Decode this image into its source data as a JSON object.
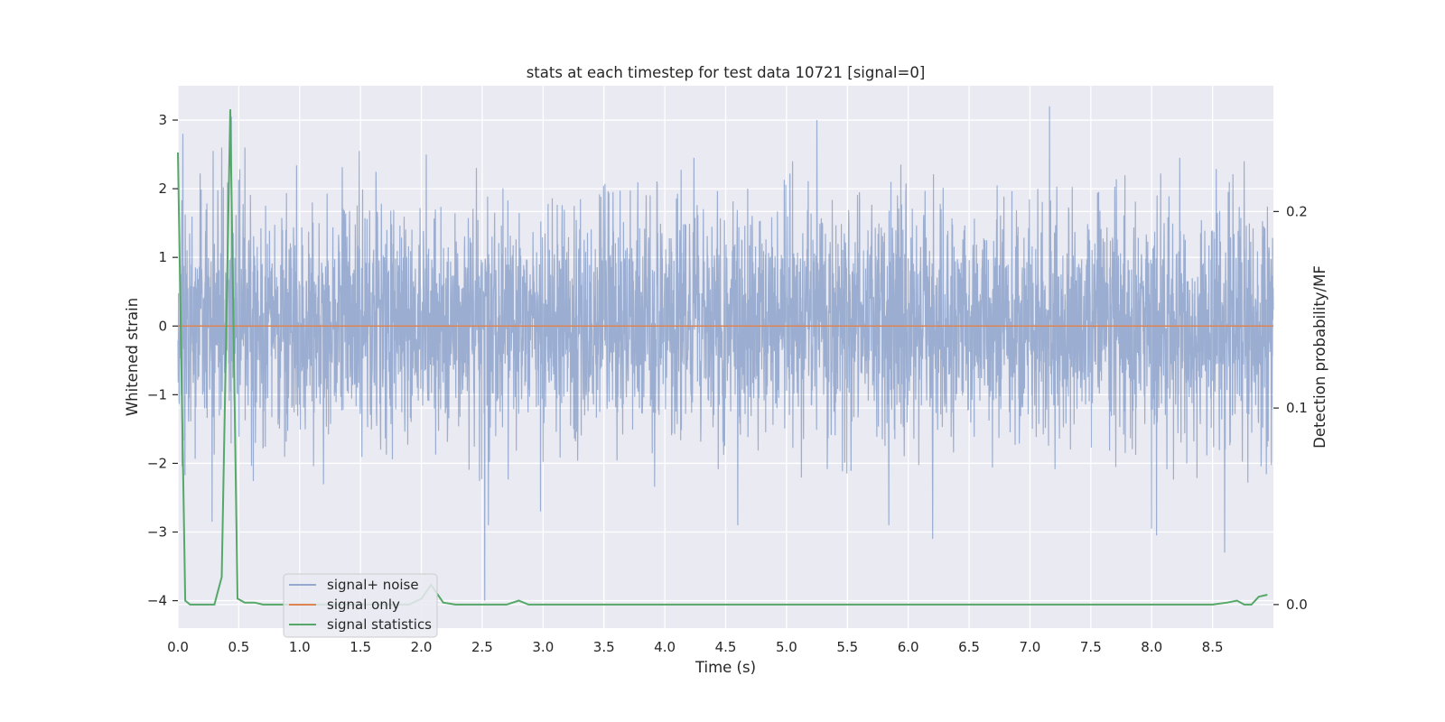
{
  "chart_data": {
    "type": "line",
    "title": "stats at each timestep for test data 10721 [signal=0]",
    "xlabel": "Time (s)",
    "ylabel": "Whitened strain",
    "y2label": "Detection probability/MF",
    "xlim": [
      0,
      9.0
    ],
    "ylim": [
      -4.4,
      3.5
    ],
    "y2lim": [
      -0.012,
      0.264
    ],
    "xticks": [
      0.0,
      0.5,
      1.0,
      1.5,
      2.0,
      2.5,
      3.0,
      3.5,
      4.0,
      4.5,
      5.0,
      5.5,
      6.0,
      6.5,
      7.0,
      7.5,
      8.0,
      8.5
    ],
    "xtick_labels": [
      "0.0",
      "0.5",
      "1.0",
      "1.5",
      "2.0",
      "2.5",
      "3.0",
      "3.5",
      "4.0",
      "4.5",
      "5.0",
      "5.5",
      "6.0",
      "6.5",
      "7.0",
      "7.5",
      "8.0",
      "8.5"
    ],
    "yticks": [
      -4,
      -3,
      -2,
      -1,
      0,
      1,
      2,
      3
    ],
    "ytick_labels": [
      "−4",
      "−3",
      "−2",
      "−1",
      "0",
      "1",
      "2",
      "3"
    ],
    "y2ticks": [
      0.0,
      0.1,
      0.2
    ],
    "y2tick_labels": [
      "0.0",
      "0.1",
      "0.2"
    ],
    "grid": true,
    "legend_position": "lower-left",
    "colors": {
      "background": "#eaeaf2",
      "grid": "#ffffff",
      "noise": "#4c72b0",
      "signal": "#dd8452",
      "stats": "#55a868"
    },
    "series": [
      {
        "name": "signal+ noise",
        "axis": "left",
        "style": "dense-noise",
        "duration": 9.0,
        "typical_amplitude": [
          -1.3,
          1.4
        ],
        "peaks": [
          {
            "x": 0.04,
            "y": 2.8
          },
          {
            "x": 0.29,
            "y": 2.55
          },
          {
            "x": 0.36,
            "y": 2.6
          },
          {
            "x": 0.44,
            "y": 3.05
          },
          {
            "x": 0.55,
            "y": 2.6
          },
          {
            "x": 1.49,
            "y": 2.55
          },
          {
            "x": 2.04,
            "y": 2.5
          },
          {
            "x": 4.24,
            "y": 2.45
          },
          {
            "x": 5.05,
            "y": 2.4
          },
          {
            "x": 5.25,
            "y": 3.0
          },
          {
            "x": 5.94,
            "y": 2.35
          },
          {
            "x": 7.16,
            "y": 3.2
          },
          {
            "x": 8.23,
            "y": 2.45
          },
          {
            "x": 8.76,
            "y": 2.4
          }
        ],
        "troughs": [
          {
            "x": 0.28,
            "y": -2.85
          },
          {
            "x": 2.52,
            "y": -4.0
          },
          {
            "x": 2.55,
            "y": -2.9
          },
          {
            "x": 2.98,
            "y": -2.7
          },
          {
            "x": 4.6,
            "y": -2.9
          },
          {
            "x": 5.84,
            "y": -2.9
          },
          {
            "x": 6.2,
            "y": -3.1
          },
          {
            "x": 8.0,
            "y": -2.95
          },
          {
            "x": 8.04,
            "y": -3.05
          },
          {
            "x": 8.6,
            "y": -3.3
          }
        ]
      },
      {
        "name": "signal only",
        "axis": "left",
        "x": [
          0,
          9.0
        ],
        "y": [
          0,
          0
        ]
      },
      {
        "name": "signal statistics",
        "axis": "right",
        "x": [
          0.0,
          0.06,
          0.1,
          0.15,
          0.2,
          0.25,
          0.3,
          0.36,
          0.43,
          0.49,
          0.55,
          0.63,
          0.7,
          1.0,
          1.5,
          1.9,
          2.0,
          2.08,
          2.18,
          2.28,
          2.5,
          2.7,
          2.8,
          2.88,
          3.0,
          4.0,
          5.0,
          6.0,
          7.0,
          8.0,
          8.5,
          8.62,
          8.7,
          8.76,
          8.82,
          8.88,
          8.95
        ],
        "y": [
          0.23,
          0.002,
          0.0,
          0.0,
          0.0,
          0.0,
          0.0,
          0.014,
          0.252,
          0.003,
          0.001,
          0.001,
          0.0,
          0.0,
          0.0,
          0.0,
          0.003,
          0.01,
          0.001,
          0.0,
          0.0,
          0.0,
          0.002,
          0.0,
          0.0,
          0.0,
          0.0,
          0.0,
          0.0,
          0.0,
          0.0,
          0.001,
          0.002,
          0.0,
          0.0,
          0.004,
          0.005
        ]
      }
    ]
  }
}
